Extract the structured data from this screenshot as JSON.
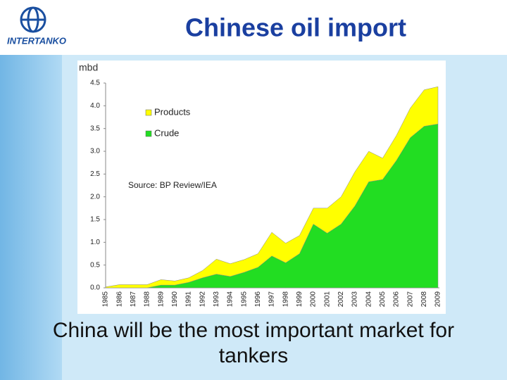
{
  "logo": {
    "text": "INTERTANKO"
  },
  "chart_data": {
    "type": "stacked-area",
    "title": "Chinese oil import",
    "y_label": "mbd",
    "annotation": "Source: BP Review/IEA",
    "categories": [
      "1985",
      "1986",
      "1987",
      "1988",
      "1989",
      "1990",
      "1991",
      "1992",
      "1993",
      "1994",
      "1995",
      "1996",
      "1997",
      "1998",
      "1999",
      "2000",
      "2001",
      "2002",
      "2003",
      "2004",
      "2005",
      "2006",
      "2007",
      "2008",
      "2009"
    ],
    "series": [
      {
        "name": "Crude",
        "color": "#22dd22",
        "values": [
          0,
          0,
          0,
          0,
          0.06,
          0.06,
          0.12,
          0.22,
          0.3,
          0.25,
          0.34,
          0.45,
          0.7,
          0.55,
          0.75,
          1.4,
          1.2,
          1.4,
          1.8,
          2.33,
          2.38,
          2.8,
          3.3,
          3.55,
          3.6
        ]
      },
      {
        "name": "Products",
        "color": "#ffff00",
        "values": [
          0.02,
          0.07,
          0.07,
          0.07,
          0.12,
          0.09,
          0.1,
          0.16,
          0.33,
          0.28,
          0.28,
          0.3,
          0.52,
          0.43,
          0.4,
          0.35,
          0.55,
          0.6,
          0.75,
          0.67,
          0.47,
          0.55,
          0.65,
          0.8,
          0.82
        ]
      }
    ],
    "ylim": [
      0,
      4.5
    ],
    "yticks": [
      {
        "value": 0,
        "label": "0.0"
      },
      {
        "value": 0.5,
        "label": "0.5"
      },
      {
        "value": 1,
        "label": "1.0"
      },
      {
        "value": 1.5,
        "label": "1.5"
      },
      {
        "value": 2,
        "label": "2.0"
      },
      {
        "value": 2.5,
        "label": "2.5"
      },
      {
        "value": 3,
        "label": "3.0"
      },
      {
        "value": 3.5,
        "label": "3.5"
      },
      {
        "value": 4,
        "label": "4.0"
      },
      {
        "value": 4.5,
        "label": "4.5"
      }
    ],
    "grid": false,
    "legend": "upper-left"
  },
  "caption": "China will be the most important market for tankers"
}
